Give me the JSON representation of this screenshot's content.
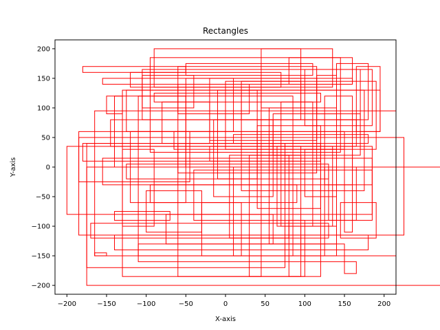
{
  "chart_data": {
    "type": "rectangles",
    "title": "Rectangles",
    "xlabel": "X-axis",
    "ylabel": "Y-axis",
    "xlim": [
      -215,
      215
    ],
    "ylim": [
      -215,
      215
    ],
    "xticks": [
      -200,
      -150,
      -100,
      -50,
      0,
      50,
      100,
      150,
      200
    ],
    "yticks": [
      -200,
      -150,
      -100,
      -50,
      0,
      50,
      100,
      150,
      200
    ],
    "grid": false,
    "edge_color": "#ff0000",
    "rectangles": [
      [
        -175,
        -200,
        335,
        0
      ],
      [
        -175,
        -170,
        75,
        40
      ],
      [
        -165,
        -150,
        215,
        95
      ],
      [
        -130,
        -185,
        45,
        130
      ],
      [
        -110,
        -150,
        85,
        120
      ],
      [
        -60,
        -185,
        120,
        40
      ],
      [
        -40,
        -90,
        185,
        -5
      ],
      [
        10,
        -150,
        125,
        0
      ],
      [
        30,
        -185,
        95,
        20
      ],
      [
        65,
        -100,
        135,
        35
      ],
      [
        100,
        -185,
        80,
        -90
      ],
      [
        140,
        -130,
        55,
        100
      ],
      [
        -200,
        -80,
        185,
        35
      ],
      [
        -185,
        -115,
        225,
        50
      ],
      [
        -145,
        35,
        165,
        80
      ],
      [
        -125,
        60,
        195,
        130
      ],
      [
        -105,
        80,
        170,
        165
      ],
      [
        -95,
        25,
        145,
        185
      ],
      [
        -60,
        -10,
        115,
        170
      ],
      [
        -20,
        45,
        115,
        150
      ],
      [
        0,
        30,
        190,
        145
      ],
      [
        20,
        -40,
        175,
        130
      ],
      [
        45,
        100,
        95,
        200
      ],
      [
        -90,
        135,
        135,
        200
      ],
      [
        -150,
        120,
        -130,
        90
      ],
      [
        -165,
        -150,
        -150,
        -145
      ],
      [
        100,
        70,
        185,
        165
      ],
      [
        115,
        90,
        140,
        155
      ],
      [
        140,
        80,
        180,
        175
      ],
      [
        165,
        60,
        195,
        170
      ],
      [
        125,
        -30,
        160,
        120
      ],
      [
        130,
        -90,
        165,
        0
      ],
      [
        145,
        -120,
        190,
        -60
      ],
      [
        150,
        -180,
        165,
        -160
      ],
      [
        -120,
        -60,
        -50,
        60
      ],
      [
        -100,
        -110,
        -30,
        -40
      ],
      [
        -75,
        -130,
        60,
        -80
      ],
      [
        -30,
        -150,
        20,
        -60
      ],
      [
        -185,
        -25,
        -45,
        60
      ],
      [
        -140,
        0,
        -50,
        120
      ],
      [
        -80,
        40,
        -20,
        110
      ],
      [
        -50,
        60,
        10,
        150
      ],
      [
        -15,
        -50,
        60,
        80
      ],
      [
        5,
        -120,
        80,
        20
      ],
      [
        40,
        -70,
        120,
        70
      ],
      [
        60,
        20,
        170,
        90
      ],
      [
        80,
        140,
        160,
        185
      ],
      [
        95,
        -150,
        140,
        -100
      ],
      [
        -130,
        -100,
        -90,
        30
      ],
      [
        -105,
        100,
        -40,
        155
      ],
      [
        -60,
        90,
        30,
        140
      ],
      [
        20,
        80,
        95,
        145
      ],
      [
        -180,
        10,
        120,
        40
      ],
      [
        -155,
        -30,
        185,
        15
      ],
      [
        -170,
        -120,
        130,
        -95
      ],
      [
        -140,
        -140,
        180,
        -115
      ],
      [
        -110,
        -160,
        150,
        -130
      ],
      [
        -90,
        110,
        120,
        125
      ],
      [
        -120,
        135,
        70,
        160
      ],
      [
        -50,
        155,
        110,
        175
      ],
      [
        -10,
        -20,
        40,
        130
      ],
      [
        70,
        -100,
        110,
        110
      ],
      [
        150,
        -110,
        160,
        40
      ],
      [
        -95,
        -60,
        90,
        -30
      ],
      [
        -125,
        -20,
        130,
        5
      ],
      [
        -65,
        30,
        150,
        60
      ],
      [
        10,
        40,
        180,
        55
      ],
      [
        -140,
        -90,
        -70,
        -75
      ],
      [
        -20,
        10,
        95,
        35
      ],
      [
        100,
        -50,
        140,
        30
      ],
      [
        -180,
        160,
        -50,
        170
      ],
      [
        -155,
        140,
        160,
        150
      ]
    ]
  }
}
